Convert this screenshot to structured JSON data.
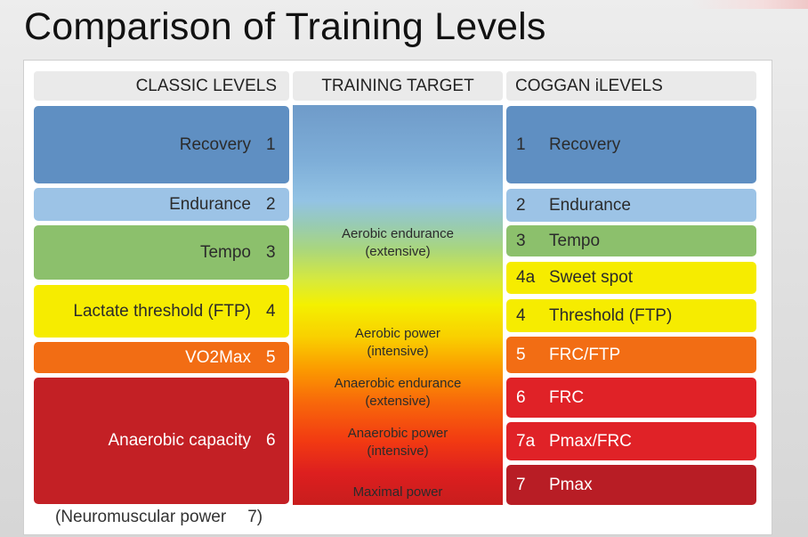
{
  "title": "Comparison of Training Levels",
  "colors": {
    "recovery": "#5f8fc2",
    "endurance": "#9cc3e6",
    "tempo": "#8cc06c",
    "threshold": "#f6ec00",
    "vo2max": "#f26d14",
    "anaerobic": "#c32025",
    "frc": "#e02227",
    "pmax": "#b81d25"
  },
  "headers": {
    "classic": "CLASSIC LEVELS",
    "target": "TRAINING TARGET",
    "coggan": "COGGAN iLEVELS"
  },
  "classic_levels": [
    {
      "label": "Recovery",
      "num": "1"
    },
    {
      "label": "Endurance",
      "num": "2"
    },
    {
      "label": "Tempo",
      "num": "3"
    },
    {
      "label": "Lactate threshold (FTP)",
      "num": "4"
    },
    {
      "label": "VO2Max",
      "num": "5"
    },
    {
      "label": "Anaerobic capacity",
      "num": "6"
    }
  ],
  "training_targets": [
    {
      "line1": "Aerobic endurance",
      "line2": "(extensive)"
    },
    {
      "line1": "Aerobic power",
      "line2": "(intensive)"
    },
    {
      "line1": "Anaerobic endurance",
      "line2": "(extensive)"
    },
    {
      "line1": "Anaerobic power",
      "line2": "(intensive)"
    },
    {
      "line1": "Maximal power",
      "line2": ""
    }
  ],
  "coggan_levels": [
    {
      "num": "1",
      "label": "Recovery"
    },
    {
      "num": "2",
      "label": "Endurance"
    },
    {
      "num": "3",
      "label": "Tempo"
    },
    {
      "num": "4a",
      "label": "Sweet spot"
    },
    {
      "num": "4",
      "label": "Threshold (FTP)"
    },
    {
      "num": "5",
      "label": "FRC/FTP"
    },
    {
      "num": "6",
      "label": "FRC"
    },
    {
      "num": "7a",
      "label": "Pmax/FRC"
    },
    {
      "num": "7",
      "label": "Pmax"
    }
  ],
  "footnote": {
    "label": "(Neuromuscular power",
    "num": "7)"
  }
}
